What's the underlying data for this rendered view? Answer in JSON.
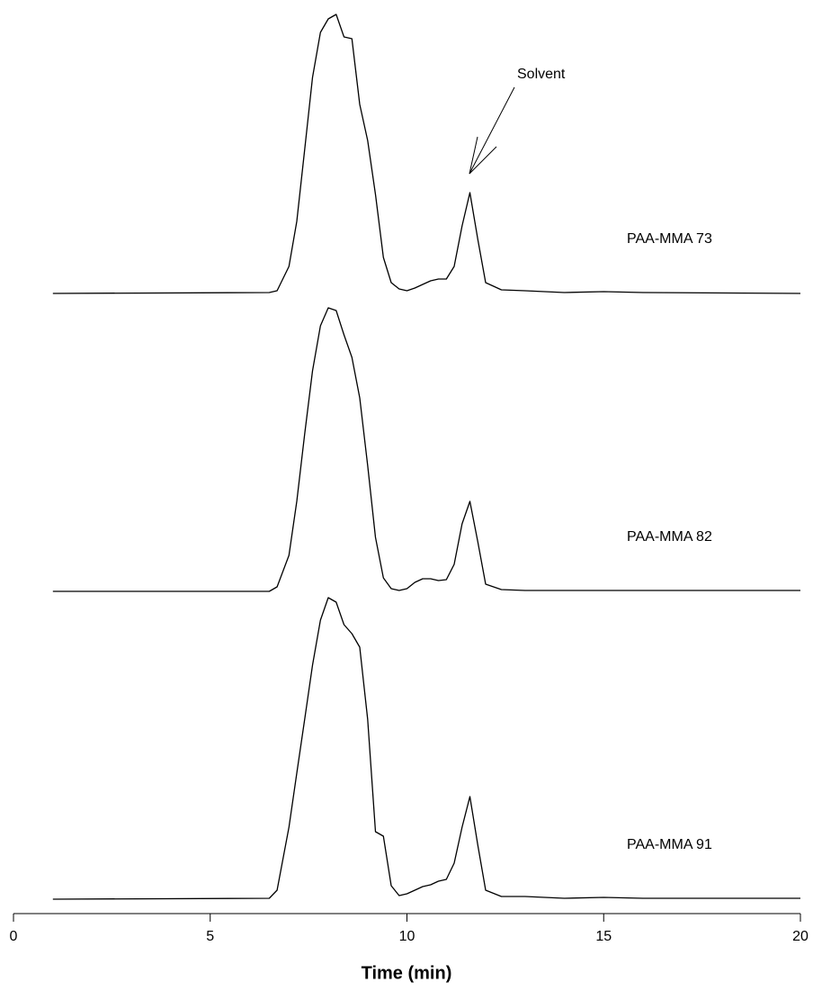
{
  "chart_data": {
    "type": "line",
    "x_label": "Time (min)",
    "annotation": "Solvent",
    "xlim": [
      0,
      20
    ],
    "xticks": [
      0,
      5,
      10,
      15,
      20
    ],
    "x": [
      1,
      6.5,
      6.7,
      7.0,
      7.2,
      7.4,
      7.6,
      7.8,
      8.0,
      8.2,
      8.4,
      8.6,
      8.8,
      9.0,
      9.2,
      9.4,
      9.6,
      9.8,
      10.0,
      10.2,
      10.4,
      10.6,
      10.8,
      11.0,
      11.2,
      11.4,
      11.6,
      11.8,
      12.0,
      12.4,
      13,
      14,
      15,
      16,
      20
    ],
    "series": [
      {
        "name": "PAA-MMA 73",
        "color": "#000000",
        "values": [
          0,
          1,
          3,
          30,
          80,
          160,
          240,
          290,
          305,
          310,
          285,
          283,
          210,
          170,
          110,
          40,
          12,
          5,
          3,
          6,
          10,
          14,
          16,
          16,
          30,
          75,
          112,
          60,
          12,
          4,
          3,
          1,
          2,
          1,
          0
        ]
      },
      {
        "name": "PAA-MMA 82",
        "color": "#000000",
        "values": [
          0,
          0,
          5,
          40,
          100,
          175,
          245,
          295,
          315,
          312,
          285,
          260,
          215,
          140,
          60,
          15,
          3,
          1,
          3,
          10,
          14,
          14,
          12,
          13,
          30,
          75,
          100,
          55,
          8,
          2,
          1,
          1,
          1,
          1,
          1
        ]
      },
      {
        "name": "PAA-MMA 91",
        "color": "#000000",
        "values": [
          0,
          1,
          10,
          80,
          140,
          200,
          260,
          310,
          335,
          330,
          305,
          295,
          280,
          200,
          75,
          70,
          15,
          4,
          6,
          10,
          14,
          16,
          20,
          22,
          40,
          80,
          114,
          60,
          10,
          3,
          3,
          1,
          2,
          1,
          1
        ]
      }
    ]
  }
}
